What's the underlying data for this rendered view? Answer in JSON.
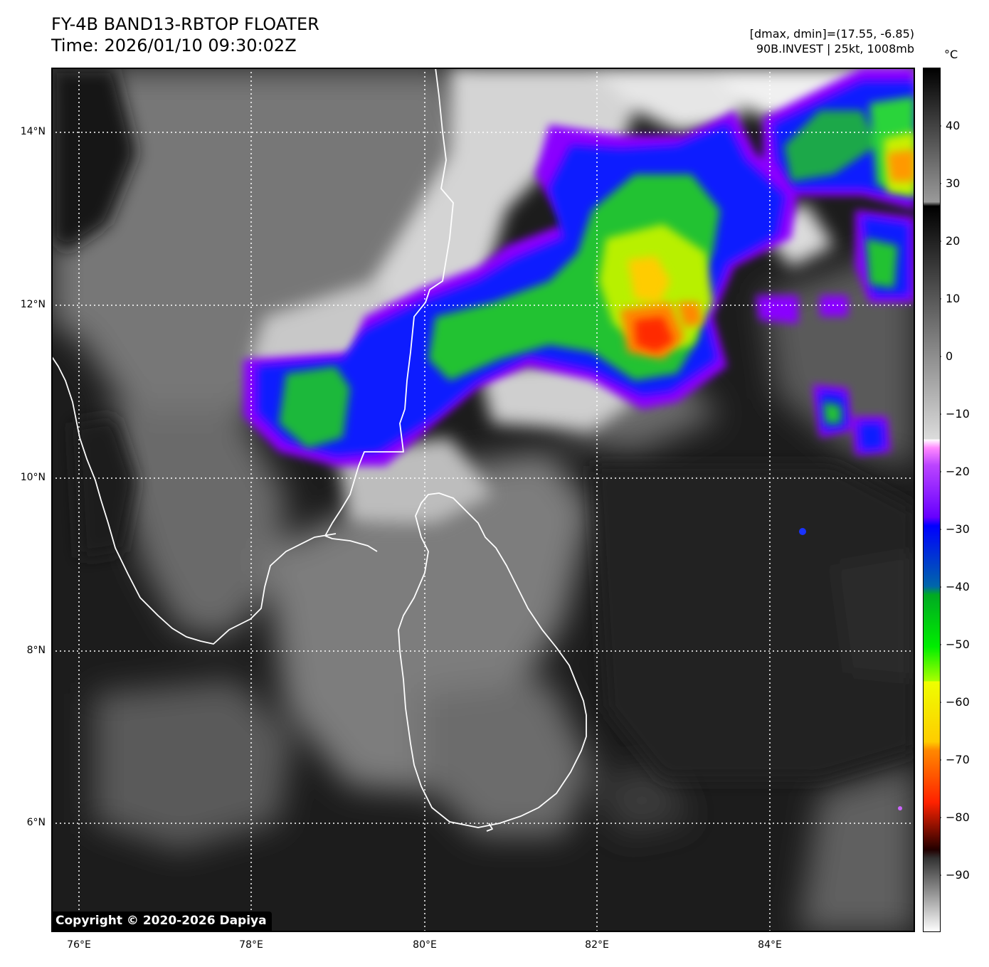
{
  "header": {
    "title": "FY-4B BAND13-RBTOP FLOATER",
    "time": "Time: 2026/01/10 09:30:02Z",
    "range": "[dmax, dmin]=(17.55, -6.85)",
    "storm": "90B.INVEST | 25kt, 1008mb"
  },
  "colorbar": {
    "unit": "°C",
    "ticks": [
      "40",
      "30",
      "20",
      "10",
      "0",
      "−10",
      "−20",
      "−30",
      "−40",
      "−50",
      "−60",
      "−70",
      "−80",
      "−90"
    ]
  },
  "axes": {
    "x_ticks": [
      "76°E",
      "78°E",
      "80°E",
      "82°E",
      "84°E"
    ],
    "y_ticks": [
      "14°N",
      "12°N",
      "10°N",
      "8°N",
      "6°N"
    ]
  },
  "copyright": "Copyright © 2020-2026 Dapiya",
  "colors": {
    "background_dark": "#1a1a1a",
    "cloud_white": "#e0e0e0",
    "coastline": "#ffffff",
    "convection_purple": "#9900ff",
    "convection_blue": "#1122ff",
    "convection_green": "#22cc22",
    "convection_yellow": "#ffee00",
    "convection_red": "#ff2200"
  }
}
